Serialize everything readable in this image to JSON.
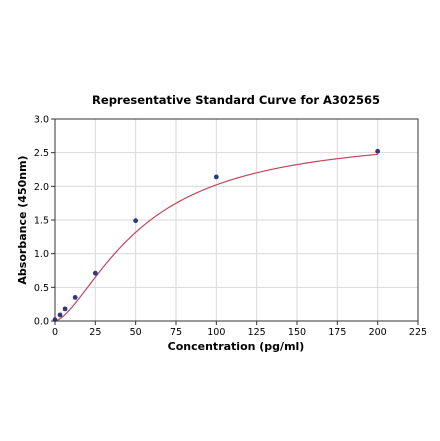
{
  "chart_data": {
    "type": "scatter",
    "title": "Representative Standard Curve for A302565",
    "xlabel": "Concentration (pg/ml)",
    "ylabel": "Absorbance (450nm)",
    "xlim": [
      0,
      225
    ],
    "ylim": [
      0,
      3.0
    ],
    "x_ticks": [
      "0",
      "25",
      "50",
      "75",
      "100",
      "125",
      "150",
      "175",
      "200",
      "225"
    ],
    "y_ticks": [
      "0.0",
      "0.5",
      "1.0",
      "1.5",
      "2.0",
      "2.5",
      "3.0"
    ],
    "grid": true,
    "points": {
      "x": [
        0,
        3.125,
        6.25,
        12.5,
        25,
        50,
        100,
        200
      ],
      "y": [
        0.02,
        0.09,
        0.18,
        0.35,
        0.71,
        1.49,
        2.14,
        2.52
      ]
    },
    "fit_curve": "four-parameter logistic",
    "colors": {
      "curve": "#c0485e",
      "points": "#2f3a78",
      "grid": "#d9d9d9"
    }
  }
}
